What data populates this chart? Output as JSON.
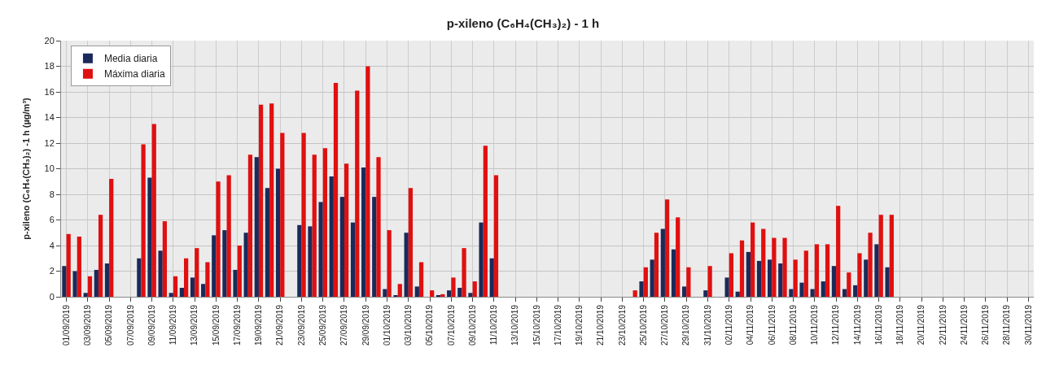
{
  "chart_data": {
    "type": "bar",
    "title": "p-xileno (C₆H₄(CH₃)₂) - 1 h",
    "ylabel": "p-xileno (C₆H₄(CH₃)₂) -1 h (µg/m³)",
    "categories": [
      "01/09/2019",
      null,
      "03/09/2019",
      null,
      "05/09/2019",
      null,
      "07/09/2019",
      null,
      "09/09/2019",
      null,
      "11/09/2019",
      null,
      "13/09/2019",
      null,
      "15/09/2019",
      null,
      "17/09/2019",
      null,
      "19/09/2019",
      null,
      "21/09/2019",
      null,
      "23/09/2019",
      null,
      "25/09/2019",
      null,
      "27/09/2019",
      null,
      "29/09/2019",
      null,
      "01/10/2019",
      null,
      "03/10/2019",
      null,
      "05/10/2019",
      null,
      "07/10/2019",
      null,
      "09/10/2019",
      null,
      "11/10/2019",
      null,
      "13/10/2019",
      null,
      "15/10/2019",
      null,
      "17/10/2019",
      null,
      "19/10/2019",
      null,
      "21/10/2019",
      null,
      "23/10/2019",
      null,
      "25/10/2019",
      null,
      "27/10/2019",
      null,
      "29/10/2019",
      null,
      "31/10/2019",
      null,
      "02/11/2019",
      null,
      "04/11/2019",
      null,
      "06/11/2019",
      null,
      "08/11/2019",
      null,
      "10/11/2019",
      null,
      "12/11/2019",
      null,
      "14/11/2019",
      null,
      "16/11/2019",
      null,
      "18/11/2019",
      null,
      "20/11/2019",
      null,
      "22/11/2019",
      null,
      "24/11/2019",
      null,
      "26/11/2019",
      null,
      "28/11/2019",
      null,
      "30/11/2019"
    ],
    "series": [
      {
        "name": "Media diaria",
        "color": "#1a2a5a",
        "values": [
          2.4,
          2.0,
          0.3,
          2.1,
          2.6,
          null,
          null,
          3.0,
          9.3,
          3.6,
          0.3,
          0.7,
          1.5,
          1.0,
          4.8,
          5.2,
          2.1,
          5.0,
          10.9,
          8.5,
          10.0,
          null,
          5.6,
          5.5,
          7.4,
          9.4,
          7.8,
          5.8,
          10.1,
          7.8,
          0.6,
          0.1,
          5.0,
          0.8,
          0.0,
          0.1,
          0.5,
          0.7,
          0.3,
          5.8,
          3.0,
          null,
          null,
          null,
          null,
          null,
          null,
          null,
          null,
          null,
          null,
          null,
          null,
          0.0,
          1.2,
          2.9,
          5.3,
          3.7,
          0.8,
          null,
          0.5,
          null,
          1.5,
          0.4,
          3.5,
          2.8,
          2.9,
          2.6,
          0.6,
          1.1,
          0.6,
          1.2,
          2.4,
          0.6,
          0.9,
          2.9,
          4.1,
          2.3,
          null,
          null,
          null,
          null,
          null,
          null,
          null,
          null,
          null,
          null,
          null,
          null,
          null
        ]
      },
      {
        "name": "Máxima diaria",
        "color": "#e01010",
        "values": [
          4.9,
          4.7,
          1.6,
          6.4,
          9.2,
          null,
          null,
          11.9,
          13.5,
          5.9,
          1.6,
          3.0,
          3.8,
          2.7,
          9.0,
          9.5,
          4.0,
          11.1,
          15.0,
          15.1,
          12.8,
          null,
          12.8,
          11.1,
          11.6,
          16.7,
          10.4,
          16.1,
          18.0,
          10.9,
          5.2,
          1.0,
          8.5,
          2.7,
          0.5,
          0.2,
          1.5,
          3.8,
          1.2,
          11.8,
          9.5,
          null,
          null,
          null,
          null,
          null,
          null,
          null,
          null,
          null,
          null,
          null,
          null,
          0.5,
          2.3,
          5.0,
          7.6,
          6.2,
          2.3,
          null,
          2.4,
          null,
          3.4,
          4.4,
          5.8,
          5.3,
          4.6,
          4.6,
          2.9,
          3.6,
          4.1,
          4.1,
          7.1,
          1.9,
          3.4,
          5.0,
          6.4,
          6.4,
          null,
          null,
          null,
          null,
          null,
          null,
          null,
          null,
          null,
          null,
          null,
          null,
          null
        ]
      }
    ],
    "ylim": [
      0,
      20
    ],
    "yticks": [
      0,
      2,
      4,
      6,
      8,
      10,
      12,
      14,
      16,
      18,
      20
    ],
    "grid": true,
    "legend": "top left"
  }
}
